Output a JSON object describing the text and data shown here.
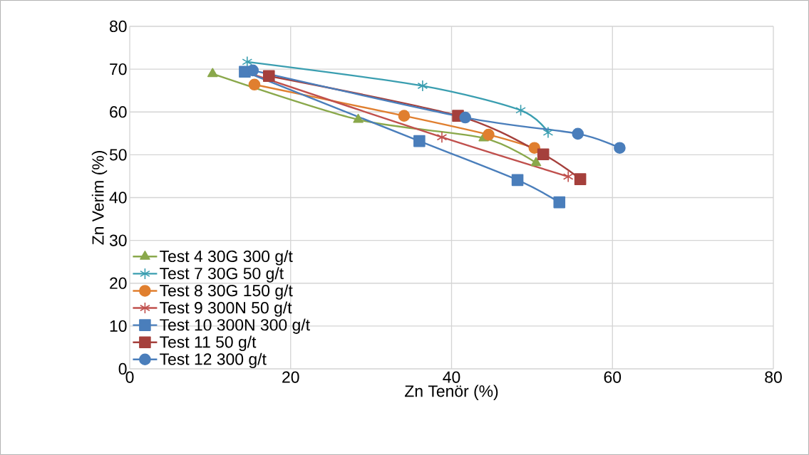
{
  "chart_data": {
    "type": "line",
    "xlabel": "Zn Tenör (%)",
    "ylabel": "Zn Verim (%)",
    "xlim": [
      0,
      80
    ],
    "ylim": [
      0,
      80
    ],
    "xticks": [
      0,
      20,
      40,
      60,
      80
    ],
    "yticks": [
      0,
      10,
      20,
      30,
      40,
      50,
      60,
      70,
      80
    ],
    "grid": true,
    "legend": "left",
    "line_style": "solid",
    "series": [
      {
        "name": "Test 4 30G 300 g/t",
        "color": "#8aa84b",
        "marker": "triangle",
        "x": [
          10.3,
          28.4,
          44.0,
          50.5
        ],
        "values": [
          68.9,
          58.2,
          53.9,
          48.1
        ]
      },
      {
        "name": "Test 7 30G 50 g/t",
        "color": "#3a9eb0",
        "marker": "cross",
        "x": [
          14.6,
          36.4,
          48.6,
          52.0
        ],
        "values": [
          71.7,
          66.1,
          60.4,
          55.2
        ]
      },
      {
        "name": "Test 8 30G 150 g/t",
        "color": "#e07f2f",
        "marker": "circle",
        "x": [
          15.5,
          34.1,
          44.6,
          50.3
        ],
        "values": [
          66.4,
          59.1,
          54.7,
          51.6
        ]
      },
      {
        "name": "Test 9 300N 50 g/t",
        "color": "#c0504d",
        "marker": "cross",
        "x": [
          14.3,
          38.8,
          54.5
        ],
        "values": [
          69.4,
          54.1,
          44.9
        ]
      },
      {
        "name": "Test 10 300N 300 g/t",
        "color": "#4a7ebb",
        "marker": "square",
        "x": [
          14.3,
          36.0,
          48.2,
          53.4
        ],
        "values": [
          69.4,
          53.2,
          44.1,
          38.9
        ]
      },
      {
        "name": "Test 11 50 g/t",
        "color": "#a5403c",
        "marker": "square",
        "x": [
          17.3,
          40.8,
          51.4,
          56.0
        ],
        "values": [
          68.4,
          59.1,
          50.1,
          44.3
        ]
      },
      {
        "name": "Test 12 300 g/t",
        "color": "#4a7ebb",
        "marker": "circle",
        "x": [
          15.3,
          41.7,
          55.7,
          60.9
        ],
        "values": [
          69.7,
          58.7,
          54.9,
          51.6
        ]
      }
    ]
  }
}
